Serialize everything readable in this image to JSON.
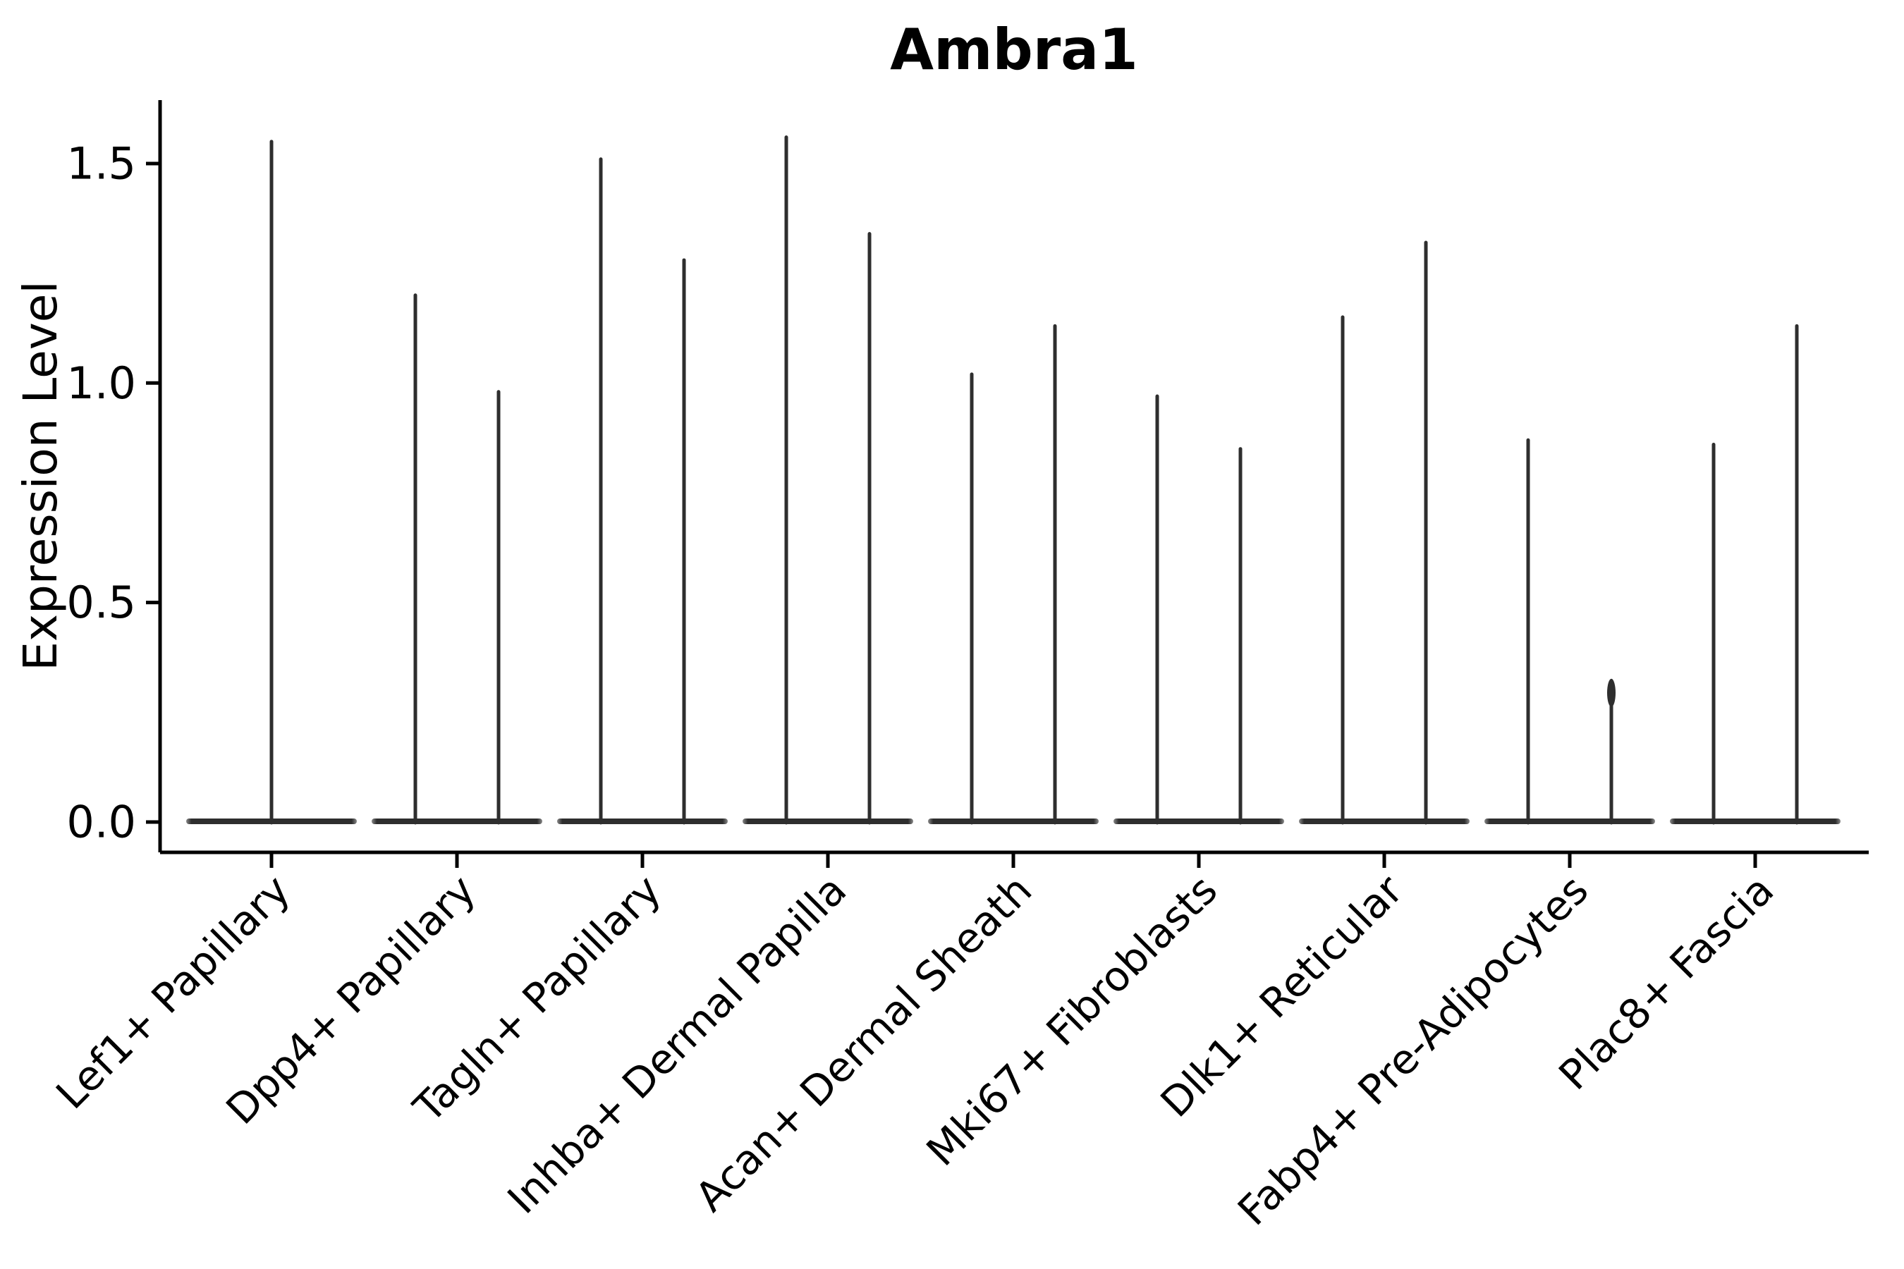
{
  "style": {
    "background": "#ffffff",
    "axis_color": "#000000",
    "text_color": "#000000",
    "violin_color": "#2e2e2e",
    "violin_body_edge_fade": "#8a8a8a"
  },
  "chart_data": {
    "type": "violin",
    "title": "Ambra1",
    "xlabel": "",
    "ylabel": "Expression Level",
    "ylim": [
      0,
      1.65
    ],
    "yticks": [
      {
        "v": 0.0,
        "label": "0.0"
      },
      {
        "v": 0.5,
        "label": "0.5"
      },
      {
        "v": 1.0,
        "label": "1.0"
      },
      {
        "v": 1.5,
        "label": "1.5"
      }
    ],
    "x_label_rotation": 45,
    "grid": false,
    "legend": false,
    "description": "Violin plot of Ambra1 expression per fibroblast cluster; each violin is collapsed flat at 0 with a thin spike rising to its maximum expression value. All groups except the first contain two side-by-side violins.",
    "categories": [
      "Lef1+ Papillary",
      "Dpp4+ Papillary",
      "Tagln+ Papillary",
      "Inhba+ Dermal Papilla",
      "Acan+ Dermal Sheath",
      "Mki67+ Fibroblasts",
      "Dlk1+ Reticular",
      "Fabp4+ Pre-Adipocytes",
      "Plac8+ Fascia"
    ],
    "series": [
      {
        "category": "Lef1+ Papillary",
        "violins": [
          {
            "offset": 0,
            "max": 1.55
          }
        ]
      },
      {
        "category": "Dpp4+ Papillary",
        "violins": [
          {
            "offset": -1,
            "max": 1.2
          },
          {
            "offset": 1,
            "max": 0.98
          }
        ]
      },
      {
        "category": "Tagln+ Papillary",
        "violins": [
          {
            "offset": -1,
            "max": 1.51
          },
          {
            "offset": 1,
            "max": 1.28
          }
        ]
      },
      {
        "category": "Inhba+ Dermal Papilla",
        "violins": [
          {
            "offset": -1,
            "max": 1.56
          },
          {
            "offset": 1,
            "max": 1.34
          }
        ]
      },
      {
        "category": "Acan+ Dermal Sheath",
        "violins": [
          {
            "offset": -1,
            "max": 1.02
          },
          {
            "offset": 1,
            "max": 1.13
          }
        ]
      },
      {
        "category": "Mki67+ Fibroblasts",
        "violins": [
          {
            "offset": -1,
            "max": 0.97
          },
          {
            "offset": 1,
            "max": 0.85
          }
        ]
      },
      {
        "category": "Dlk1+ Reticular",
        "violins": [
          {
            "offset": -1,
            "max": 1.15
          },
          {
            "offset": 1,
            "max": 1.32
          }
        ]
      },
      {
        "category": "Fabp4+ Pre-Adipocytes",
        "violins": [
          {
            "offset": -1,
            "max": 0.87
          },
          {
            "offset": 1,
            "max": 0.32,
            "knob": true
          }
        ]
      },
      {
        "category": "Plac8+ Fascia",
        "violins": [
          {
            "offset": -1,
            "max": 0.86
          },
          {
            "offset": 1,
            "max": 1.13
          }
        ]
      }
    ]
  }
}
